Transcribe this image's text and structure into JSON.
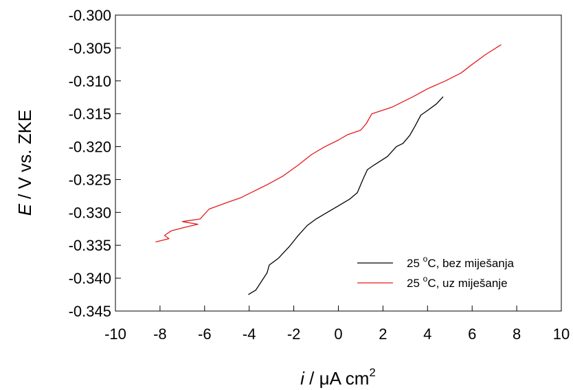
{
  "chart_data": {
    "type": "line",
    "xlabel_italic": "i",
    "xlabel_rest": " / μA cm",
    "xlabel_sup": "2",
    "ylabel_italic": "E",
    "ylabel_rest": " / V vs. ZKE",
    "xlim": [
      -10,
      10
    ],
    "ylim": [
      -0.345,
      -0.3
    ],
    "x_ticks": [
      "-10",
      "-8",
      "-6",
      "-4",
      "-2",
      "0",
      "2",
      "4",
      "6",
      "8",
      "10"
    ],
    "y_ticks": [
      "-0.300",
      "-0.305",
      "-0.310",
      "-0.315",
      "-0.320",
      "-0.325",
      "-0.330",
      "-0.335",
      "-0.340",
      "-0.345"
    ],
    "legend_position": "bottom-right",
    "grid": false,
    "series": [
      {
        "name_prefix": "25 ",
        "name_sup": "o",
        "name_suffix": "C, bez miješanja",
        "color": "#000000",
        "points": [
          [
            -4.04,
            -0.3425
          ],
          [
            -3.7,
            -0.3418
          ],
          [
            -3.2,
            -0.3392
          ],
          [
            -3.1,
            -0.338
          ],
          [
            -2.7,
            -0.337
          ],
          [
            -2.2,
            -0.3352
          ],
          [
            -1.8,
            -0.3335
          ],
          [
            -1.4,
            -0.332
          ],
          [
            -1.0,
            -0.331
          ],
          [
            -0.5,
            -0.33
          ],
          [
            0.0,
            -0.329
          ],
          [
            0.5,
            -0.328
          ],
          [
            0.85,
            -0.327
          ],
          [
            1.1,
            -0.325
          ],
          [
            1.3,
            -0.3235
          ],
          [
            1.6,
            -0.3228
          ],
          [
            2.2,
            -0.3215
          ],
          [
            2.6,
            -0.32
          ],
          [
            2.9,
            -0.3195
          ],
          [
            3.2,
            -0.3183
          ],
          [
            3.45,
            -0.3168
          ],
          [
            3.7,
            -0.3152
          ],
          [
            4.0,
            -0.3145
          ],
          [
            4.4,
            -0.3135
          ],
          [
            4.7,
            -0.3124
          ]
        ]
      },
      {
        "name_prefix": "25 ",
        "name_sup": "o",
        "name_suffix": "C, uz miješanje",
        "color": "#e41a1c",
        "points": [
          [
            -8.2,
            -0.3345
          ],
          [
            -7.6,
            -0.334
          ],
          [
            -7.8,
            -0.3335
          ],
          [
            -7.5,
            -0.3328
          ],
          [
            -6.8,
            -0.3322
          ],
          [
            -6.3,
            -0.3318
          ],
          [
            -7.0,
            -0.3314
          ],
          [
            -6.2,
            -0.331
          ],
          [
            -5.8,
            -0.3295
          ],
          [
            -5.0,
            -0.3285
          ],
          [
            -4.4,
            -0.3278
          ],
          [
            -3.8,
            -0.3268
          ],
          [
            -3.2,
            -0.3258
          ],
          [
            -2.5,
            -0.3245
          ],
          [
            -1.8,
            -0.3228
          ],
          [
            -1.2,
            -0.3212
          ],
          [
            -0.6,
            -0.32
          ],
          [
            0.0,
            -0.319
          ],
          [
            0.4,
            -0.3182
          ],
          [
            1.0,
            -0.3175
          ],
          [
            1.25,
            -0.3165
          ],
          [
            1.5,
            -0.315
          ],
          [
            2.4,
            -0.314
          ],
          [
            3.3,
            -0.3125
          ],
          [
            4.0,
            -0.3112
          ],
          [
            4.8,
            -0.31
          ],
          [
            5.5,
            -0.3088
          ],
          [
            6.0,
            -0.3075
          ],
          [
            6.6,
            -0.306
          ],
          [
            7.3,
            -0.3045
          ]
        ]
      }
    ]
  }
}
